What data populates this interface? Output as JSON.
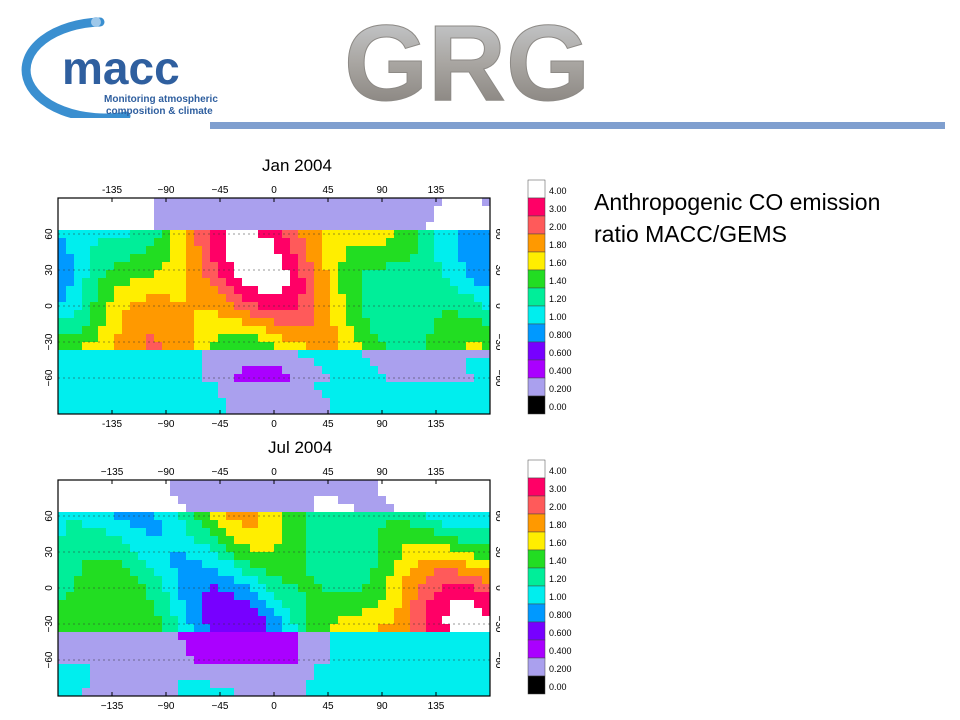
{
  "header": {
    "logo_name": "macc",
    "logo_tagline_line1": "Monitoring atmospheric",
    "logo_tagline_line2": "composition & climate",
    "brand_text": "GRG",
    "rule_color": "#7f9fcf"
  },
  "description": {
    "line1": "Anthropogenic CO emission",
    "line2": "ratio MACC/GEMS"
  },
  "chart_data": [
    {
      "type": "heatmap",
      "title": "Jan 2004",
      "x_ticks": [
        "-135",
        "−90",
        "−45",
        "0",
        "45",
        "90",
        "135"
      ],
      "y_ticks": [
        "60",
        "30",
        "0",
        "−30",
        "−60"
      ],
      "xlim": [
        -180,
        180
      ],
      "ylim": [
        -90,
        90
      ],
      "colorbar": {
        "labels": [
          "4.00",
          "3.00",
          "2.00",
          "1.80",
          "1.60",
          "1.40",
          "1.20",
          "1.00",
          "0.800",
          "0.600",
          "0.400",
          "0.200",
          "0.00"
        ],
        "colors": [
          "#ffffff",
          "#ff0066",
          "#ff5a5a",
          "#ff9900",
          "#ffee00",
          "#22dd22",
          "#00ee99",
          "#00eeee",
          "#0099ff",
          "#7700ff",
          "#aa00ff",
          "#aaa0ee",
          "#000000"
        ]
      }
    },
    {
      "type": "heatmap",
      "title": "Jul 2004",
      "x_ticks": [
        "−135",
        "−90",
        "−45",
        "0",
        "45",
        "90",
        "135"
      ],
      "y_ticks": [
        "60",
        "30",
        "0",
        "−30",
        "−60"
      ],
      "xlim": [
        -180,
        180
      ],
      "ylim": [
        -90,
        90
      ],
      "colorbar": {
        "labels": [
          "4.00",
          "3.00",
          "2.00",
          "1.80",
          "1.60",
          "1.40",
          "1.20",
          "1.00",
          "0.800",
          "0.600",
          "0.400",
          "0.200",
          "0.00"
        ],
        "colors": [
          "#ffffff",
          "#ff0066",
          "#ff5a5a",
          "#ff9900",
          "#ffee00",
          "#22dd22",
          "#00ee99",
          "#00eeee",
          "#0099ff",
          "#7700ff",
          "#aa00ff",
          "#aaa0ee",
          "#000000"
        ]
      }
    }
  ]
}
